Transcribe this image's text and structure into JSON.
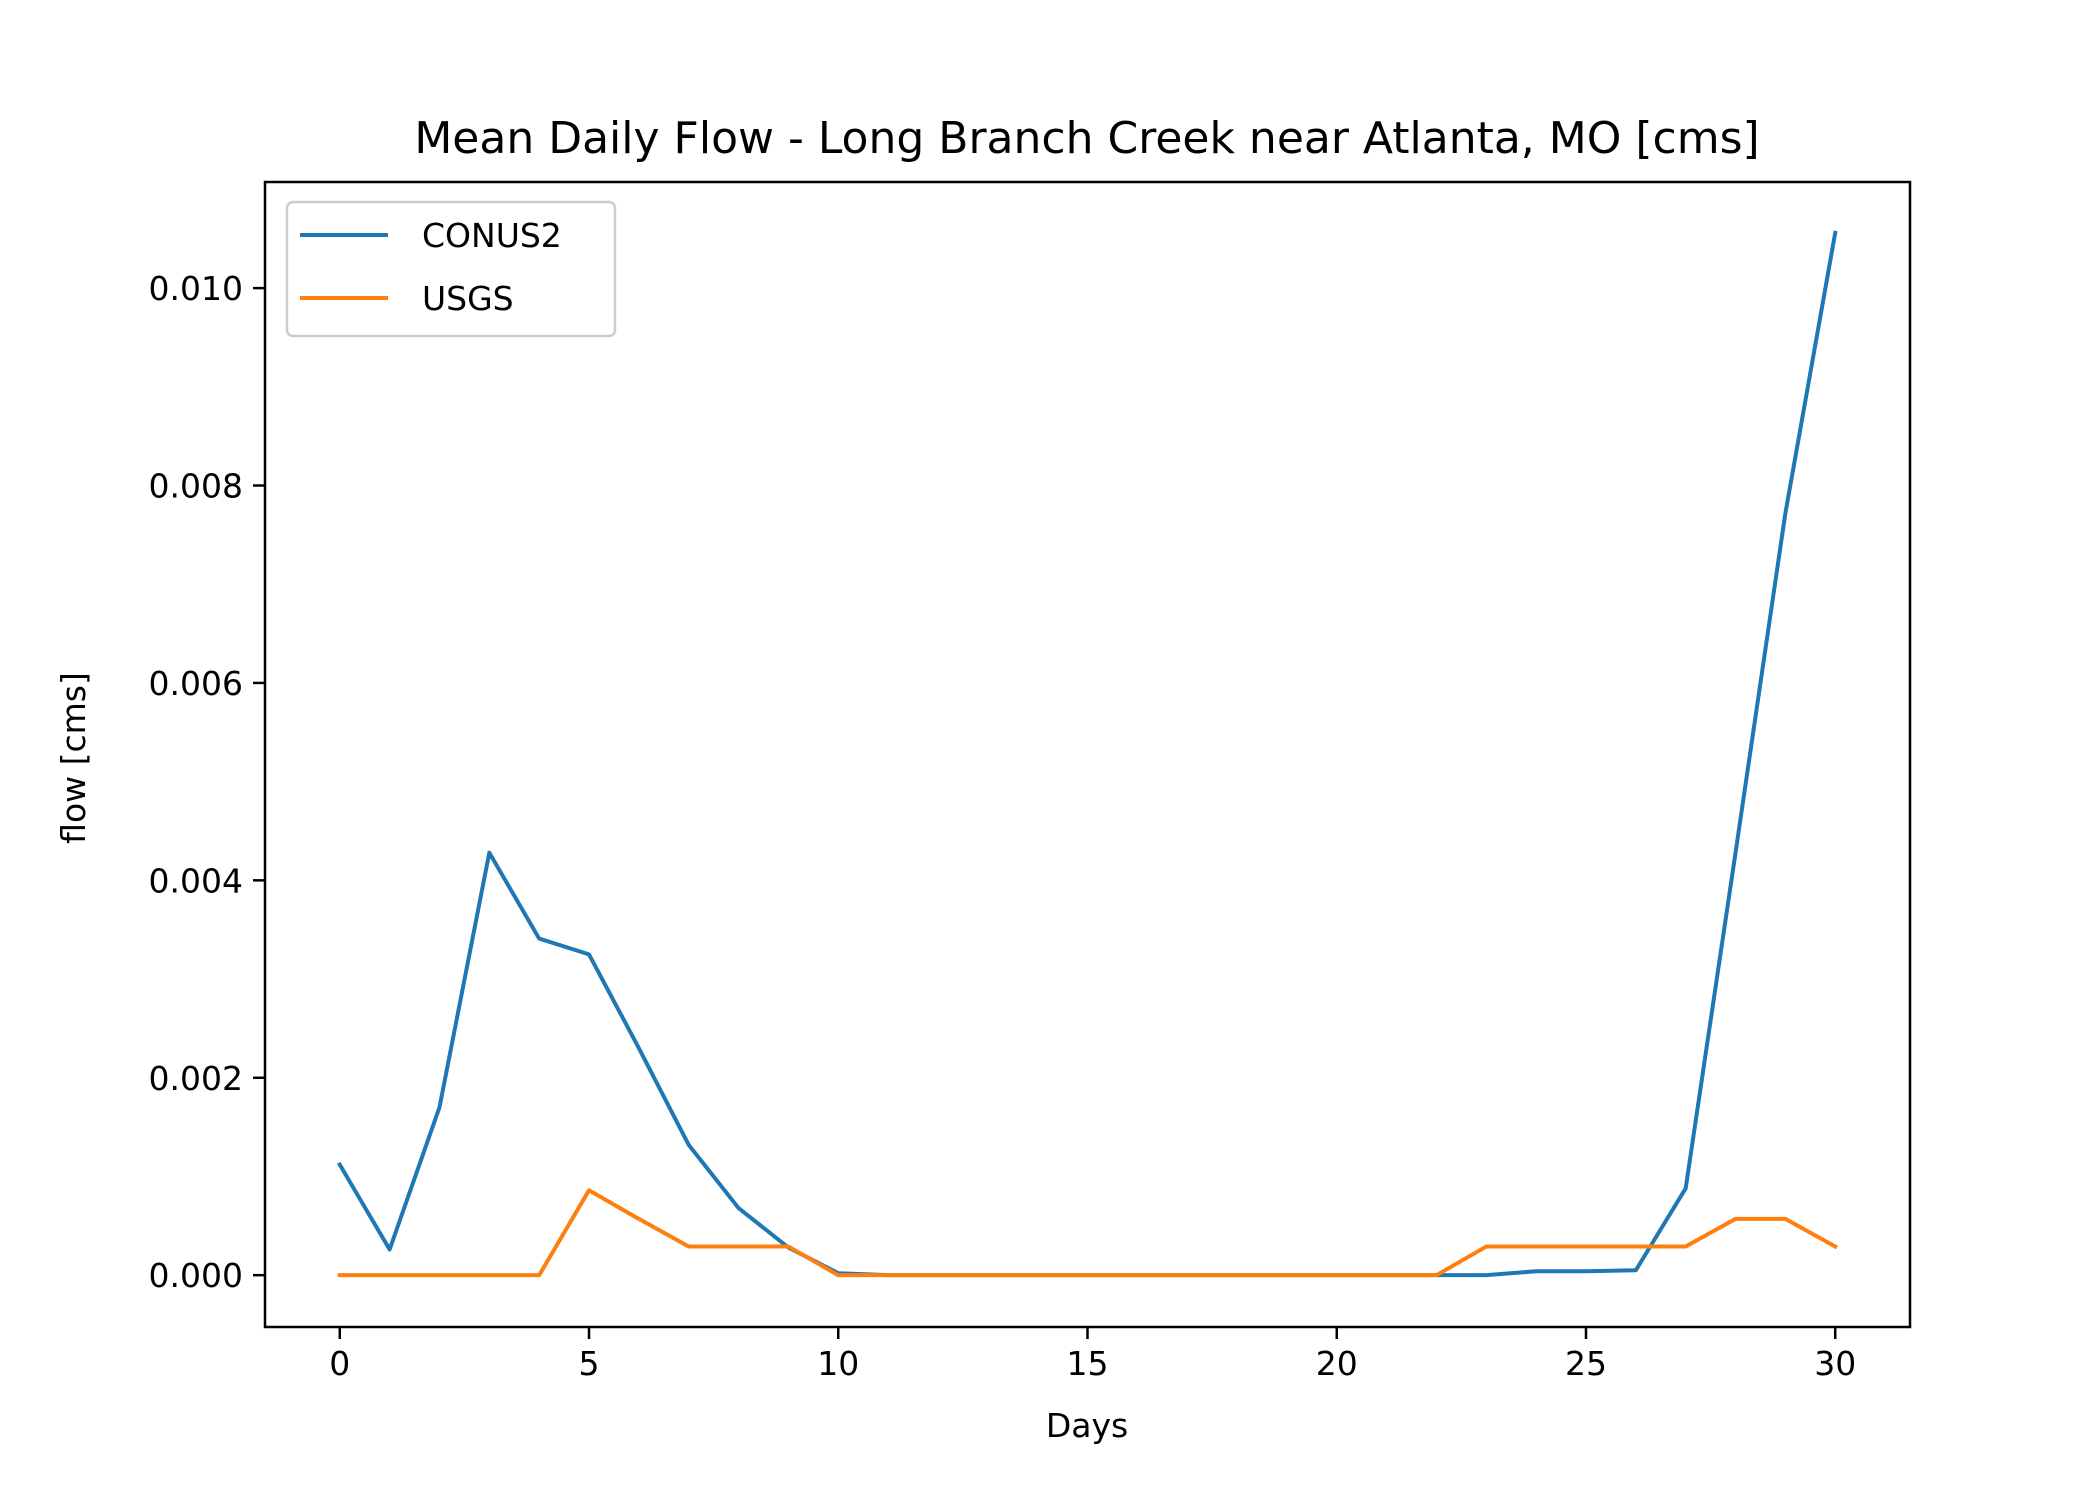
{
  "chart_data": {
    "type": "line",
    "title": "Mean Daily Flow - Long Branch Creek near Atlanta, MO [cms]",
    "xlabel": "Days",
    "ylabel": "flow [cms]",
    "xlim": [
      -1.5,
      31.5
    ],
    "ylim": [
      -0.000525,
      0.011075
    ],
    "xticks": [
      0,
      5,
      10,
      15,
      20,
      25,
      30
    ],
    "xtick_labels": [
      "0",
      "5",
      "10",
      "15",
      "20",
      "25",
      "30"
    ],
    "yticks": [
      0.0,
      0.002,
      0.004,
      0.006,
      0.008,
      0.01
    ],
    "ytick_labels": [
      "0.000",
      "0.002",
      "0.004",
      "0.006",
      "0.008",
      "0.010"
    ],
    "grid": false,
    "legend_position": "top-left",
    "x": [
      0,
      1,
      2,
      3,
      4,
      5,
      6,
      7,
      8,
      9,
      10,
      11,
      12,
      13,
      14,
      15,
      16,
      17,
      18,
      19,
      20,
      21,
      22,
      23,
      24,
      25,
      26,
      27,
      28,
      29,
      30
    ],
    "series": [
      {
        "name": "CONUS2",
        "color": "#1f77b4",
        "values": [
          0.00112,
          0.00026,
          0.0017,
          0.00428,
          0.00341,
          0.00325,
          0.0023,
          0.00132,
          0.00068,
          0.00028,
          2e-05,
          0.0,
          0.0,
          0.0,
          0.0,
          0.0,
          0.0,
          0.0,
          0.0,
          0.0,
          0.0,
          0.0,
          0.0,
          0.0,
          4e-05,
          4e-05,
          5e-05,
          0.00088,
          0.00428,
          0.00772,
          0.01056
        ]
      },
      {
        "name": "USGS",
        "color": "#ff7f0e",
        "values": [
          0.0,
          0.0,
          0.0,
          0.0,
          0.0,
          0.00086,
          0.00057,
          0.00029,
          0.00029,
          0.00029,
          0.0,
          0.0,
          0.0,
          0.0,
          0.0,
          0.0,
          0.0,
          0.0,
          0.0,
          0.0,
          0.0,
          0.0,
          0.0,
          0.00029,
          0.00029,
          0.00029,
          0.00029,
          0.00029,
          0.00057,
          0.00057,
          0.00029
        ]
      }
    ]
  }
}
